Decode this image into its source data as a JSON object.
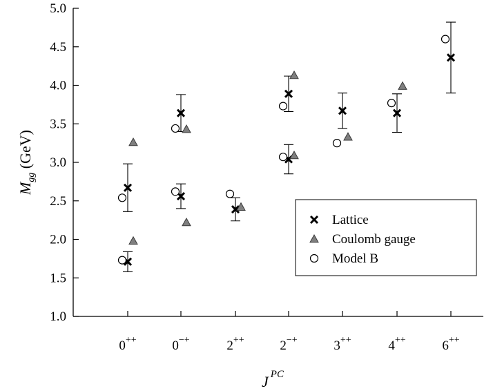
{
  "chart_data": {
    "type": "scatter",
    "ylabel_main": "M",
    "ylabel_sub": "gg",
    "ylabel_unit": " (GeV)",
    "xlabel_main": "J",
    "xlabel_sup": "PC",
    "ylim": [
      1.0,
      5.0
    ],
    "yticks": [
      "1.0",
      "1.5",
      "2.0",
      "2.5",
      "3.0",
      "3.5",
      "4.0",
      "4.5",
      "5.0"
    ],
    "x_categories": [
      {
        "base": "0",
        "sup": "++"
      },
      {
        "base": "0",
        "sup": "−+"
      },
      {
        "base": "2",
        "sup": "++"
      },
      {
        "base": "2",
        "sup": "−+"
      },
      {
        "base": "3",
        "sup": "++"
      },
      {
        "base": "4",
        "sup": "++"
      },
      {
        "base": "6",
        "sup": "++"
      }
    ],
    "grid": false,
    "legend_position": "center-right",
    "series": [
      {
        "name": "Lattice",
        "marker": "x",
        "color": "#000000",
        "points": [
          {
            "category": 0,
            "y": 1.71,
            "err_low": 1.58,
            "err_high": 1.84
          },
          {
            "category": 0,
            "y": 2.67,
            "err_low": 2.36,
            "err_high": 2.98
          },
          {
            "category": 1,
            "y": 2.56,
            "err_low": 2.4,
            "err_high": 2.72
          },
          {
            "category": 1,
            "y": 3.64,
            "err_low": 3.4,
            "err_high": 3.88
          },
          {
            "category": 2,
            "y": 2.39,
            "err_low": 2.24,
            "err_high": 2.54
          },
          {
            "category": 3,
            "y": 3.04,
            "err_low": 2.85,
            "err_high": 3.23
          },
          {
            "category": 3,
            "y": 3.89,
            "err_low": 3.66,
            "err_high": 4.12
          },
          {
            "category": 4,
            "y": 3.67,
            "err_low": 3.44,
            "err_high": 3.9
          },
          {
            "category": 5,
            "y": 3.64,
            "err_low": 3.39,
            "err_high": 3.89
          },
          {
            "category": 6,
            "y": 4.36,
            "err_low": 3.9,
            "err_high": 4.82
          }
        ]
      },
      {
        "name": "Coulomb gauge",
        "marker": "triangle",
        "color": "#7f7f7f",
        "points": [
          {
            "category": 0,
            "y": 1.98
          },
          {
            "category": 0,
            "y": 3.26
          },
          {
            "category": 1,
            "y": 2.22
          },
          {
            "category": 1,
            "y": 3.43
          },
          {
            "category": 2,
            "y": 2.42
          },
          {
            "category": 3,
            "y": 3.09
          },
          {
            "category": 3,
            "y": 4.13
          },
          {
            "category": 4,
            "y": 3.33
          },
          {
            "category": 5,
            "y": 3.99
          }
        ]
      },
      {
        "name": "Model B",
        "marker": "circle",
        "color": "#000000",
        "points": [
          {
            "category": 0,
            "y": 1.73
          },
          {
            "category": 0,
            "y": 2.54
          },
          {
            "category": 1,
            "y": 2.62
          },
          {
            "category": 1,
            "y": 3.44
          },
          {
            "category": 2,
            "y": 2.59
          },
          {
            "category": 3,
            "y": 3.07
          },
          {
            "category": 3,
            "y": 3.73
          },
          {
            "category": 4,
            "y": 3.25
          },
          {
            "category": 5,
            "y": 3.77
          },
          {
            "category": 6,
            "y": 4.6
          }
        ]
      }
    ]
  }
}
